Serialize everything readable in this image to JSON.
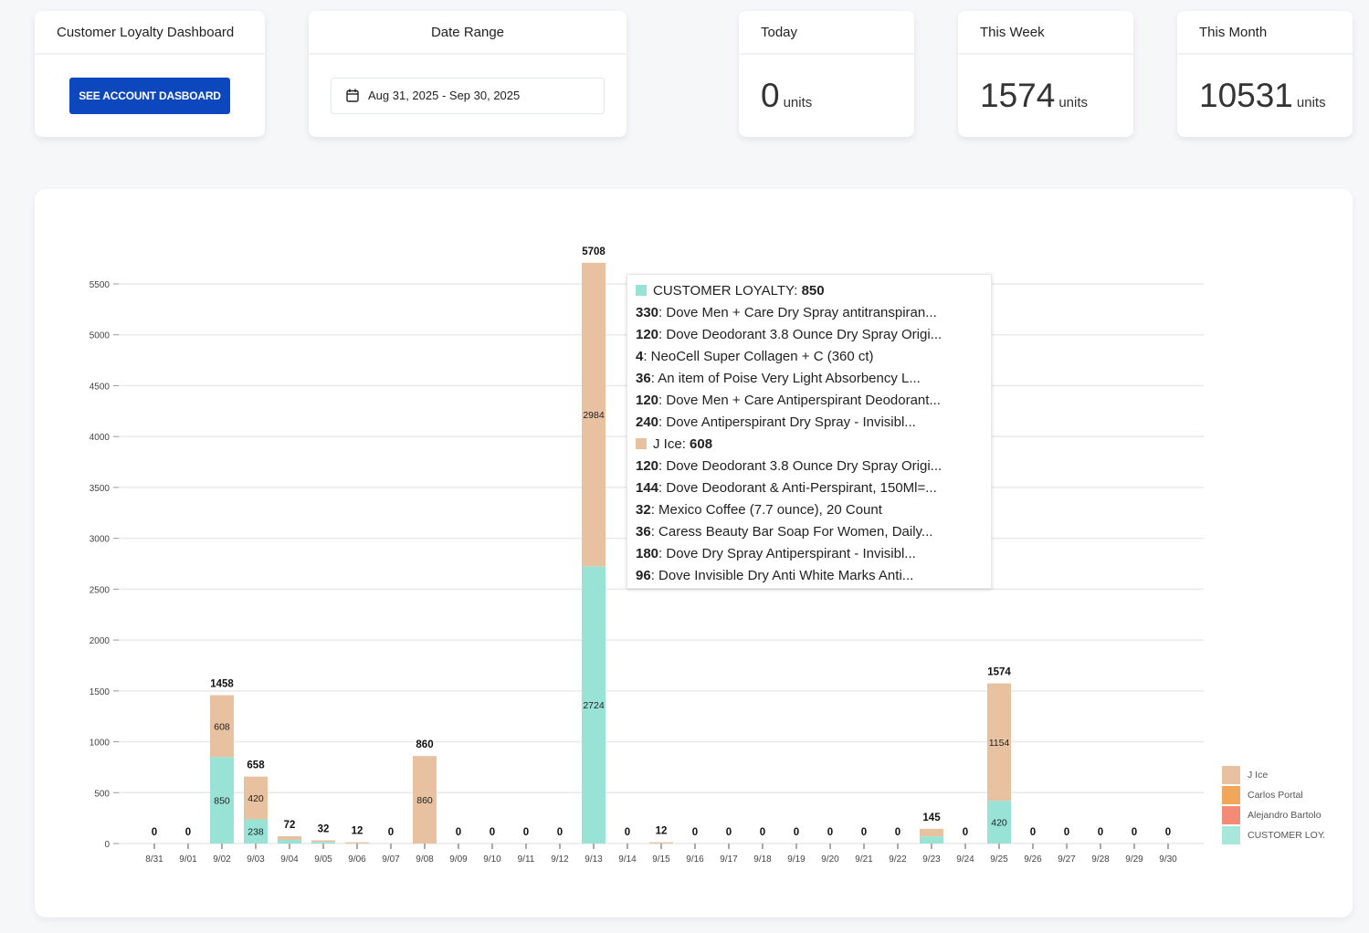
{
  "cards": {
    "dashboard": {
      "title": "Customer Loyalty Dashboard",
      "button": "SEE ACCOUNT DASBOARD"
    },
    "date_range": {
      "title": "Date Range",
      "value": "Aug 31, 2025 - Sep 30, 2025",
      "icon": "calendar-icon"
    },
    "today": {
      "title": "Today",
      "value": "0",
      "unit": "units"
    },
    "week": {
      "title": "This Week",
      "value": "1574",
      "unit": "units"
    },
    "month": {
      "title": "This Month",
      "value": "10531",
      "unit": "units"
    }
  },
  "colors": {
    "customer_loyalty": "#98e3d5",
    "j_ice": "#e8c1a0",
    "carlos": "#f2a65a",
    "alejandro": "#f38b76",
    "accent": "#0d47bd"
  },
  "chart_data": {
    "type": "bar",
    "stacked": true,
    "categories": [
      "8/31",
      "9/01",
      "9/02",
      "9/03",
      "9/04",
      "9/05",
      "9/06",
      "9/07",
      "9/08",
      "9/09",
      "9/10",
      "9/11",
      "9/12",
      "9/13",
      "9/14",
      "9/15",
      "9/16",
      "9/17",
      "9/18",
      "9/19",
      "9/20",
      "9/21",
      "9/22",
      "9/23",
      "9/24",
      "9/25",
      "9/26",
      "9/27",
      "9/28",
      "9/29",
      "9/30"
    ],
    "series": [
      {
        "name": "CUSTOMER LOYALTY",
        "values": [
          0,
          0,
          850,
          238,
          36,
          16,
          0,
          0,
          0,
          0,
          0,
          0,
          0,
          2724,
          0,
          0,
          0,
          0,
          0,
          0,
          0,
          0,
          0,
          70,
          0,
          420,
          0,
          0,
          0,
          0,
          0
        ]
      },
      {
        "name": "J Ice",
        "values": [
          0,
          0,
          608,
          420,
          36,
          16,
          12,
          0,
          860,
          0,
          0,
          0,
          0,
          2984,
          0,
          12,
          0,
          0,
          0,
          0,
          0,
          0,
          0,
          75,
          0,
          1154,
          0,
          0,
          0,
          0,
          0
        ]
      }
    ],
    "segment_labels_shown": [
      [
        "9/02",
        850,
        608
      ],
      [
        "9/03",
        238,
        420
      ],
      [
        "9/08",
        0,
        860
      ],
      [
        "9/13",
        2724,
        2984
      ],
      [
        "9/25",
        420,
        1154
      ]
    ],
    "totals": [
      0,
      0,
      1458,
      658,
      72,
      32,
      12,
      0,
      860,
      0,
      0,
      0,
      0,
      5708,
      0,
      12,
      0,
      0,
      0,
      0,
      0,
      0,
      0,
      145,
      0,
      1574,
      0,
      0,
      0,
      0,
      0
    ],
    "yticks": [
      0,
      500,
      1000,
      1500,
      2000,
      2500,
      3000,
      3500,
      4000,
      4500,
      5000,
      5500
    ],
    "ylim": [
      0,
      5800
    ],
    "grid": true,
    "legend": {
      "placement": "right",
      "entries": [
        "J Ice",
        "Carlos Portal",
        "Alejandro Bartolo",
        "CUSTOMER LOYALTY"
      ]
    }
  },
  "tooltip": {
    "groups": [
      {
        "name": "CUSTOMER LOYALTY",
        "total": "850",
        "items": [
          {
            "qty": "330",
            "name": "Dove Men + Care Dry Spray antitranspiran..."
          },
          {
            "qty": "120",
            "name": "Dove Deodorant 3.8 Ounce Dry Spray Origi..."
          },
          {
            "qty": "4",
            "name": "NeoCell Super Collagen + C (360 ct)"
          },
          {
            "qty": "36",
            "name": "An item of Poise Very Light Absorbency L..."
          },
          {
            "qty": "120",
            "name": "Dove Men + Care Antiperspirant Deodorant..."
          },
          {
            "qty": "240",
            "name": "Dove Antiperspirant Dry Spray - Invisibl..."
          }
        ]
      },
      {
        "name": "J Ice",
        "total": "608",
        "items": [
          {
            "qty": "120",
            "name": "Dove Deodorant 3.8 Ounce Dry Spray Origi..."
          },
          {
            "qty": "144",
            "name": "Dove Deodorant & Anti-Perspirant, 150Ml=..."
          },
          {
            "qty": "32",
            "name": "Mexico Coffee (7.7 ounce), 20 Count"
          },
          {
            "qty": "36",
            "name": "Caress Beauty Bar Soap For Women, Daily..."
          },
          {
            "qty": "180",
            "name": "Dove Dry Spray Antiperspirant - Invisibl..."
          },
          {
            "qty": "96",
            "name": "Dove Invisible Dry Anti White Marks Anti..."
          }
        ]
      }
    ]
  }
}
